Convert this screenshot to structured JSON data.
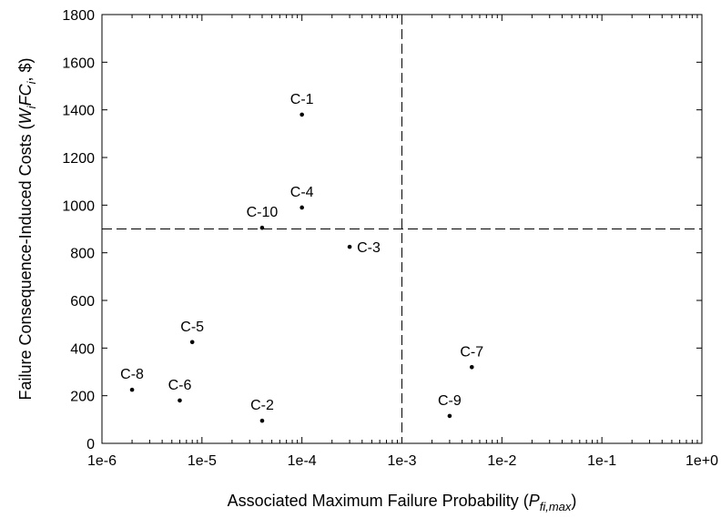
{
  "chart_data": {
    "type": "scatter",
    "xlabel": {
      "prefix": "Associated Maximum Failure Probability (",
      "var": "P",
      "sub": "fi,max",
      "suffix": ")"
    },
    "ylabel": {
      "prefix": "Failure Consequence-Induced Costs (",
      "var": "W",
      "sub": "i",
      "mid": "FC",
      "sub2": "i",
      "suffix": ", $)"
    },
    "x_scale": "log",
    "xlim": [
      1e-06,
      1
    ],
    "ylim": [
      0,
      1800
    ],
    "x_ticks": [
      "1e-6",
      "1e-5",
      "1e-4",
      "1e-3",
      "1e-2",
      "1e-1",
      "1e+0"
    ],
    "y_ticks": [
      0,
      200,
      400,
      600,
      800,
      1000,
      1200,
      1400,
      1600,
      1800
    ],
    "grid": false,
    "reference_lines": {
      "x": 0.001,
      "y": 900
    },
    "points": [
      {
        "label": "C-1",
        "x": 0.0001,
        "y": 1380,
        "label_pos": "above"
      },
      {
        "label": "C-2",
        "x": 4e-05,
        "y": 95,
        "label_pos": "above"
      },
      {
        "label": "C-3",
        "x": 0.0003,
        "y": 825,
        "label_pos": "right"
      },
      {
        "label": "C-4",
        "x": 0.0001,
        "y": 990,
        "label_pos": "above"
      },
      {
        "label": "C-5",
        "x": 8e-06,
        "y": 425,
        "label_pos": "above"
      },
      {
        "label": "C-6",
        "x": 6e-06,
        "y": 180,
        "label_pos": "above"
      },
      {
        "label": "C-7",
        "x": 0.005,
        "y": 320,
        "label_pos": "above"
      },
      {
        "label": "C-8",
        "x": 2e-06,
        "y": 225,
        "label_pos": "above"
      },
      {
        "label": "C-9",
        "x": 0.003,
        "y": 115,
        "label_pos": "above"
      },
      {
        "label": "C-10",
        "x": 4e-05,
        "y": 905,
        "label_pos": "above"
      }
    ]
  }
}
